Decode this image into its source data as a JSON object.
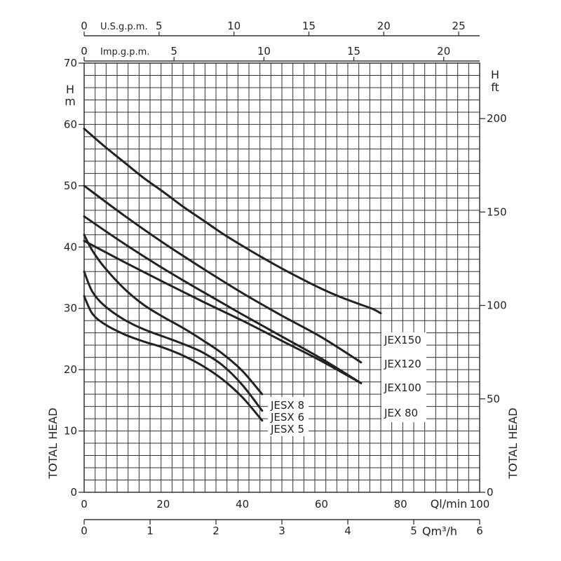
{
  "chart_data": {
    "type": "line",
    "title": "",
    "colors": {
      "curve": "#222222",
      "grid": "#333333",
      "text": "#222222",
      "background": "#ffffff"
    },
    "grid": true,
    "x_axis": {
      "unit_label": "Ql/min",
      "range": [
        0,
        100
      ],
      "ticks": [
        {
          "v": 0,
          "t": "0"
        },
        {
          "v": 20,
          "t": "20"
        },
        {
          "v": 40,
          "t": "40"
        },
        {
          "v": 60,
          "t": "60"
        },
        {
          "v": 80,
          "t": "80"
        },
        {
          "v": 100,
          "t": "100"
        }
      ]
    },
    "x_axis_m3h": {
      "unit_label": "Qm³/h",
      "range": [
        0,
        6
      ],
      "ticks": [
        {
          "v": 0,
          "t": "0"
        },
        {
          "v": 1,
          "t": "1"
        },
        {
          "v": 2,
          "t": "2"
        },
        {
          "v": 3,
          "t": "3"
        },
        {
          "v": 4,
          "t": "4"
        },
        {
          "v": 5,
          "t": "5"
        },
        {
          "v": 6,
          "t": "6"
        }
      ]
    },
    "x_axis_usgpm": {
      "unit_label": "U.S.g.p.m.",
      "range": [
        0,
        26.4
      ],
      "ticks": [
        {
          "v": 0,
          "t": "0"
        },
        {
          "v": 5,
          "t": "5"
        },
        {
          "v": 10,
          "t": "10"
        },
        {
          "v": 15,
          "t": "15"
        },
        {
          "v": 20,
          "t": "20"
        },
        {
          "v": 25,
          "t": "25"
        }
      ]
    },
    "x_axis_impgpm": {
      "unit_label": "Imp.g.p.m.",
      "range": [
        0,
        22
      ],
      "ticks": [
        {
          "v": 0,
          "t": "0"
        },
        {
          "v": 5,
          "t": "5"
        },
        {
          "v": 10,
          "t": "10"
        },
        {
          "v": 15,
          "t": "15"
        },
        {
          "v": 20,
          "t": "20"
        }
      ]
    },
    "y_axis": {
      "unit_label_top": "H",
      "unit_label_bottom": "m",
      "side_label": "TOTAL HEAD",
      "range": [
        0,
        70
      ],
      "ticks": [
        {
          "v": 0,
          "t": "0"
        },
        {
          "v": 10,
          "t": "10"
        },
        {
          "v": 20,
          "t": "20"
        },
        {
          "v": 30,
          "t": "30"
        },
        {
          "v": 40,
          "t": "40"
        },
        {
          "v": 50,
          "t": "50"
        },
        {
          "v": 60,
          "t": "60"
        },
        {
          "v": 70,
          "t": "70"
        }
      ]
    },
    "y_axis_ft": {
      "unit_label_top": "H",
      "unit_label_bottom": "ft",
      "side_label": "TOTAL HEAD",
      "range": [
        0,
        229.7
      ],
      "ticks": [
        {
          "v": 0,
          "t": "0"
        },
        {
          "v": 50,
          "t": "50"
        },
        {
          "v": 100,
          "t": "100"
        },
        {
          "v": 150,
          "t": "150"
        },
        {
          "v": 200,
          "t": "200"
        }
      ]
    },
    "series": [
      {
        "name": "JEX150",
        "x": [
          0,
          5,
          10,
          15,
          20,
          25,
          30,
          35,
          40,
          45,
          50,
          55,
          60,
          65,
          70,
          73,
          75
        ],
        "y": [
          59.3,
          56.5,
          53.9,
          51.3,
          49.0,
          46.6,
          44.4,
          42.2,
          40.2,
          38.3,
          36.5,
          34.8,
          33.2,
          31.8,
          30.6,
          29.9,
          29.2
        ]
      },
      {
        "name": "JEX120",
        "x": [
          0,
          10,
          20,
          30,
          40,
          50,
          60,
          70
        ],
        "y": [
          50.0,
          45.2,
          40.7,
          36.5,
          32.5,
          28.8,
          25.3,
          21.2
        ]
      },
      {
        "name": "JEX100",
        "x": [
          0,
          10,
          20,
          30,
          40,
          50,
          60,
          70
        ],
        "y": [
          45.0,
          40.6,
          36.5,
          32.7,
          29.0,
          25.4,
          21.8,
          17.8
        ]
      },
      {
        "name": "JEX 80",
        "x": [
          0,
          10,
          20,
          30,
          40,
          50,
          60,
          70
        ],
        "y": [
          41.0,
          37.6,
          34.3,
          31.1,
          28.0,
          24.7,
          21.4,
          17.8
        ]
      },
      {
        "name": "JESX 8",
        "x": [
          0,
          2,
          5,
          10,
          15,
          20,
          25,
          30,
          35,
          40,
          45
        ],
        "y": [
          42.0,
          39.5,
          36.8,
          33.3,
          30.6,
          28.6,
          26.8,
          24.8,
          22.6,
          19.8,
          16.0
        ]
      },
      {
        "name": "JESX 6",
        "x": [
          0,
          2,
          5,
          10,
          15,
          20,
          25,
          30,
          35,
          40,
          45
        ],
        "y": [
          36.0,
          32.8,
          30.5,
          28.2,
          26.6,
          25.4,
          24.2,
          22.8,
          20.7,
          17.5,
          13.3
        ]
      },
      {
        "name": "JESX 5",
        "x": [
          0,
          2,
          5,
          10,
          15,
          20,
          25,
          30,
          35,
          40,
          45
        ],
        "y": [
          32.0,
          29.2,
          27.5,
          25.8,
          24.6,
          23.6,
          22.3,
          20.6,
          18.4,
          15.5,
          11.7
        ]
      }
    ],
    "labels": {
      "jex150": "JEX150",
      "jex120": "JEX120",
      "jex100": "JEX100",
      "jex80": "JEX 80",
      "jesx8": "JESX 8",
      "jesx6": "JESX 6",
      "jesx5": "JESX 5"
    }
  }
}
